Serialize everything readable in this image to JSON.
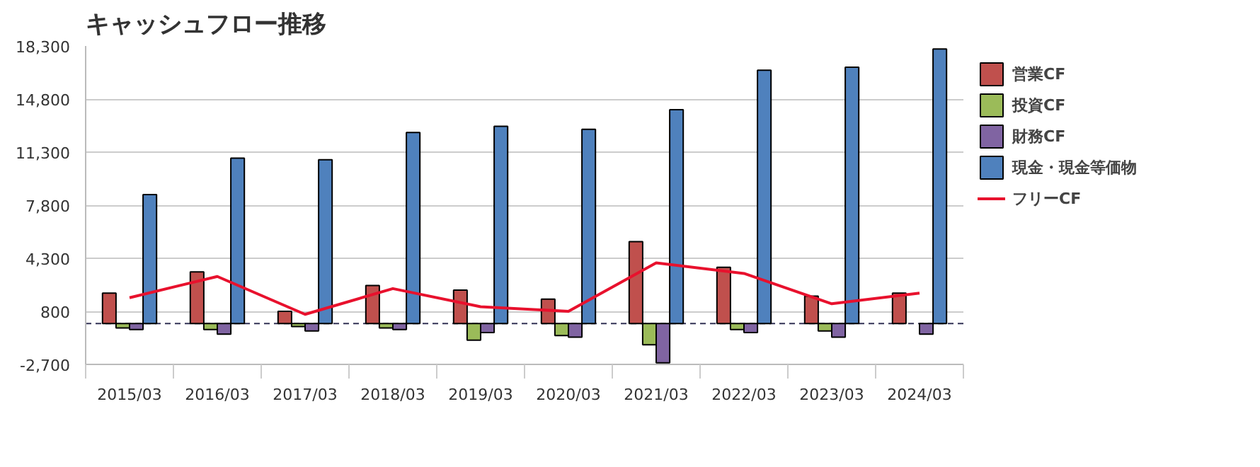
{
  "chart_data": {
    "type": "bar",
    "title": "キャッシュフロー推移",
    "categories": [
      "2015/03",
      "2016/03",
      "2017/03",
      "2018/03",
      "2019/03",
      "2020/03",
      "2021/03",
      "2022/03",
      "2023/03",
      "2024/03"
    ],
    "series": [
      {
        "name": "営業CF",
        "color": "#c0504d",
        "values": [
          2000,
          3400,
          800,
          2500,
          2200,
          1600,
          5400,
          3700,
          1800,
          2000
        ]
      },
      {
        "name": "投資CF",
        "color": "#9bbb59",
        "values": [
          -300,
          -400,
          -200,
          -300,
          -1100,
          -800,
          -1400,
          -400,
          -500,
          null
        ]
      },
      {
        "name": "財務CF",
        "color": "#8064a2",
        "values": [
          -400,
          -700,
          -500,
          -400,
          -600,
          -900,
          -2600,
          -600,
          -900,
          -700
        ]
      },
      {
        "name": "現金・現金等価物",
        "color": "#4f81bd",
        "values": [
          8500,
          10900,
          10800,
          12600,
          13000,
          12800,
          14100,
          16700,
          16900,
          18100
        ]
      },
      {
        "name": "フリーCF",
        "type": "line",
        "color": "#e8112d",
        "values": [
          1700,
          3100,
          600,
          2300,
          1100,
          800,
          4000,
          3300,
          1300,
          2000
        ]
      }
    ],
    "ylim": [
      -2700,
      18300
    ],
    "yticks": [
      {
        "value": -2700,
        "label": "-2,700"
      },
      800,
      {
        "value": 4300,
        "label": "4,300"
      },
      {
        "value": 7800,
        "label": "7,800"
      },
      {
        "value": 11300,
        "label": "11,300"
      },
      {
        "value": 14800,
        "label": "14,800"
      },
      {
        "value": 18300,
        "label": "18,300"
      }
    ],
    "ref_lines": [
      {
        "axis": "y",
        "value": 0,
        "color": "#333355",
        "line_style": "dashed"
      }
    ],
    "grid": "y",
    "legend": "right"
  }
}
